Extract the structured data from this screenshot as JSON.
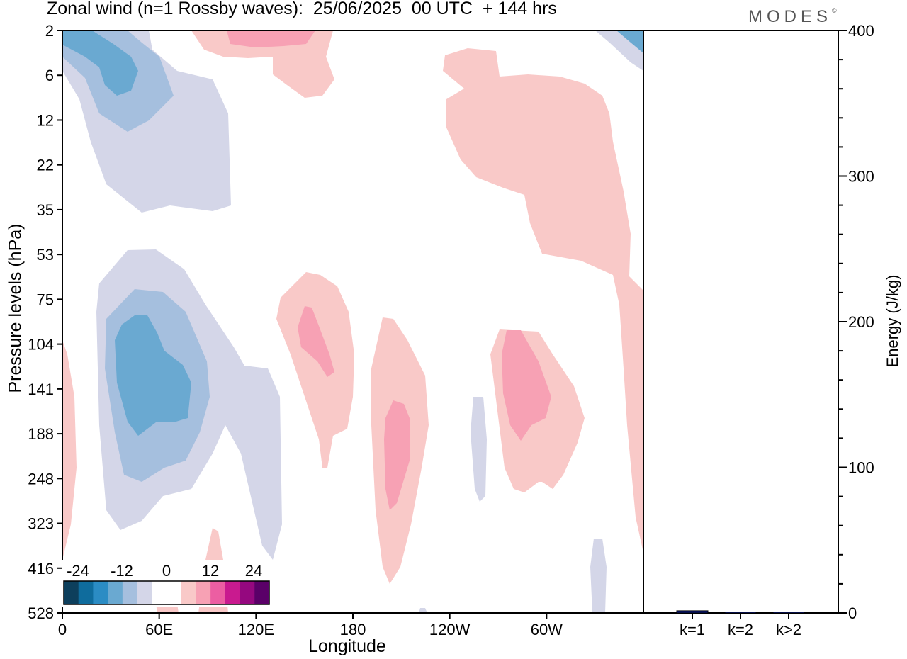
{
  "header": {
    "title": "Zonal wind (n=1 Rossby waves):  25/06/2025  00 UTC  + 144 hrs",
    "logo": "MODES",
    "logo_mark": "©"
  },
  "chart_data": [
    {
      "type": "heatmap",
      "title": "Zonal wind (n=1 Rossby waves):  25/06/2025  00 UTC  + 144 hrs",
      "xlabel": "Longitude",
      "ylabel": "Pressure levels (hPa)",
      "x_ticks": [
        "0",
        "60E",
        "120E",
        "180",
        "120W",
        "60W"
      ],
      "x_tick_values": [
        0,
        60,
        120,
        180,
        240,
        300
      ],
      "xlim": [
        0,
        360
      ],
      "y_ticks": [
        "2",
        "6",
        "12",
        "22",
        "35",
        "53",
        "75",
        "104",
        "141",
        "188",
        "248",
        "323",
        "416",
        "528"
      ],
      "colorbar": {
        "tick_labels": [
          "-24",
          "-12",
          "0",
          "12",
          "24"
        ],
        "colors": [
          "#0d3f5c",
          "#0f6c9d",
          "#2b8cc4",
          "#6aa9d1",
          "#a5bfde",
          "#d4d6e8",
          "#ffffff",
          "#ffffff",
          "#f9c9c8",
          "#f7a1b4",
          "#ec5ea2",
          "#c91a8f",
          "#95087f",
          "#5a0068"
        ],
        "placement": "bottom-left"
      },
      "features": [
        {
          "sign": "negative",
          "max_level": -18,
          "lon_range": [
            0,
            48
          ],
          "p_range": [
            2,
            12
          ]
        },
        {
          "sign": "negative",
          "max_level": -18,
          "lon_range": [
            25,
            80
          ],
          "p_range": [
            75,
            248
          ]
        },
        {
          "sign": "positive",
          "max_level": 12,
          "lon_range": [
            140,
            170
          ],
          "p_range": [
            75,
            141
          ]
        },
        {
          "sign": "positive",
          "max_level": 12,
          "lon_range": [
            198,
            214
          ],
          "p_range": [
            141,
            323
          ]
        },
        {
          "sign": "positive",
          "max_level": 12,
          "lon_range": [
            273,
            303
          ],
          "p_range": [
            104,
            188
          ]
        },
        {
          "sign": "positive",
          "max_level": 6,
          "lon_range": [
            235,
            360
          ],
          "p_range": [
            2,
            75
          ]
        }
      ]
    },
    {
      "type": "bar",
      "categories": [
        "k=1",
        "k=2",
        "k>2"
      ],
      "values": [
        1.5,
        0.5,
        0.5
      ],
      "ylabel": "Energy (J/kg)",
      "ylim": [
        0,
        400
      ],
      "y_ticks": [
        "0",
        "100",
        "200",
        "300",
        "400"
      ],
      "bar_color": "#0a1a8c"
    }
  ]
}
